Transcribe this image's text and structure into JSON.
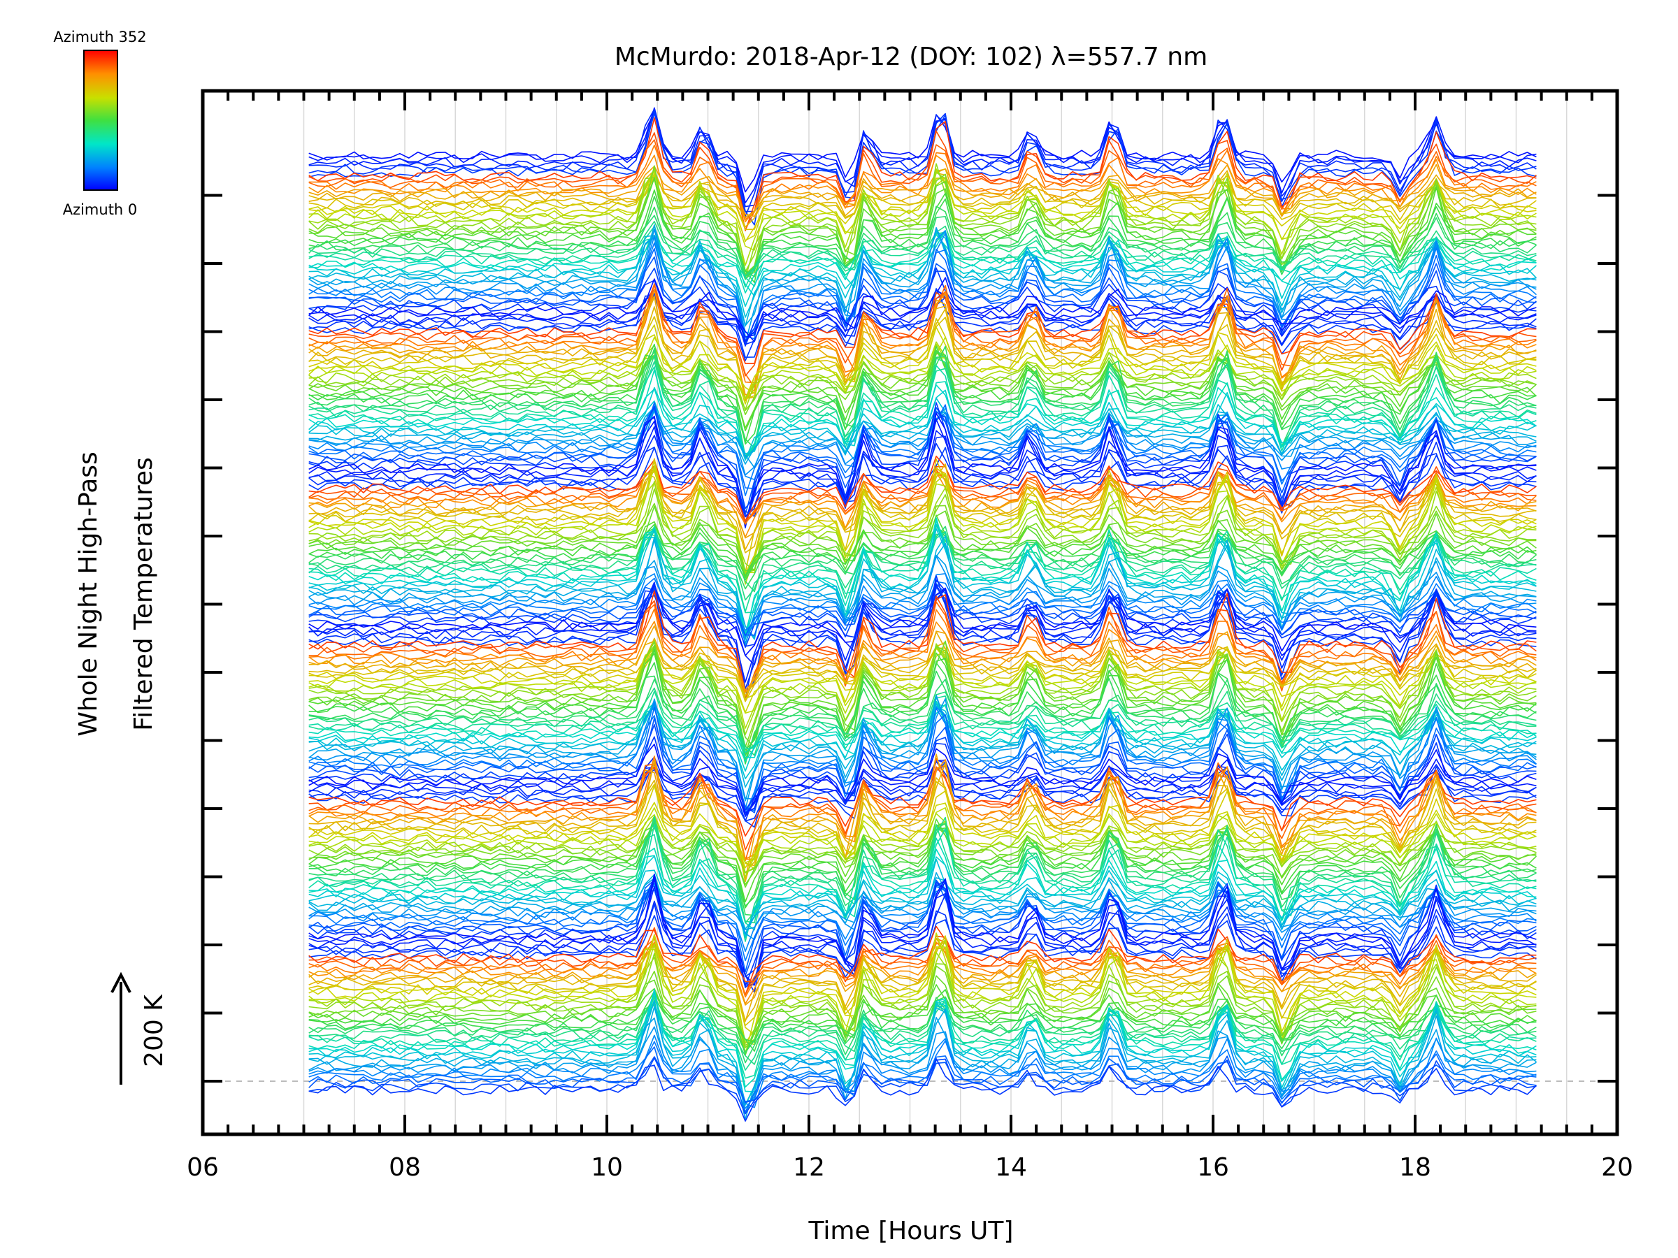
{
  "chart_data": {
    "type": "line",
    "title": "McMurdo: 2018-Apr-12 (DOY: 102) λ=557.7 nm",
    "xlabel": "Time [Hours UT]",
    "ylabel_line1": "Whole Night High-Pass",
    "ylabel_line2": "Filtered Temperatures",
    "xlim": [
      6,
      20
    ],
    "x_ticks": [
      "06",
      "08",
      "10",
      "12",
      "14",
      "16",
      "18",
      "20"
    ],
    "grid": "vertical lines at every half hour from 07 to 19.5",
    "scale_bar": {
      "label": "200 K",
      "direction": "up"
    },
    "colorbar": {
      "top_label": "Azimuth 352",
      "bottom_label": "Azimuth 0",
      "colormap": "rainbow (blue to red)"
    },
    "baseline": "dashed",
    "data_time_range": [
      7.05,
      19.25
    ],
    "azimuth_step_deg": 8,
    "azimuth_count": 45,
    "stacked_groups": 6,
    "stacked_profile_count": 270,
    "peaks": [
      {
        "time": 10.45,
        "amplitude": 0.9
      },
      {
        "time": 10.95,
        "amplitude": 0.6
      },
      {
        "time": 12.55,
        "amplitude": 0.5
      },
      {
        "time": 13.3,
        "amplitude": 0.95
      },
      {
        "time": 14.2,
        "amplitude": 0.5
      },
      {
        "time": 15.0,
        "amplitude": 0.7
      },
      {
        "time": 16.1,
        "amplitude": 0.8
      },
      {
        "time": 18.2,
        "amplitude": 0.7
      }
    ],
    "dips": [
      {
        "time": 11.4,
        "amplitude": 0.9
      },
      {
        "time": 12.4,
        "amplitude": 0.6
      },
      {
        "time": 16.7,
        "amplitude": 0.6
      },
      {
        "time": 17.85,
        "amplitude": 0.4
      }
    ]
  },
  "colors": {
    "frame": "#000000",
    "grid": "#d9d9d9",
    "baseline": "#bbbbbb"
  }
}
